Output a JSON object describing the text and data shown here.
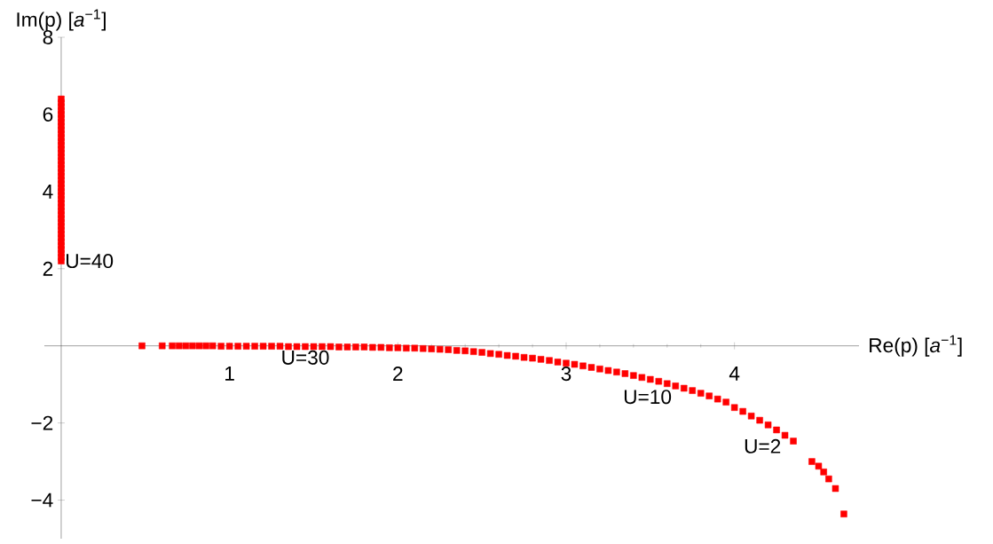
{
  "chart_data": {
    "type": "scatter",
    "xlabel": "Re(p) [*a*$^{−1}$]",
    "ylabel": "Im(p) [*a*$^{−1}$]",
    "xlim": [
      -0.1,
      4.74
    ],
    "ylim": [
      -5,
      8
    ],
    "xticks": [
      1,
      2,
      3,
      4
    ],
    "yticks": [
      {
        "value": -4,
        "label": "−4"
      },
      {
        "value": -2,
        "label": "−2"
      },
      2,
      4,
      6,
      8
    ],
    "grid": false,
    "marker": "square",
    "series": [
      {
        "color": "#ff0000",
        "x": [
          0,
          0,
          0,
          0,
          0,
          0,
          0,
          0,
          0,
          0,
          0,
          0,
          0,
          0,
          0,
          0,
          0,
          0,
          0,
          0,
          0,
          0,
          0,
          0,
          0,
          0,
          0,
          0,
          0,
          0,
          0,
          0,
          0,
          0,
          0,
          0,
          0,
          0,
          0,
          0,
          0,
          0,
          0,
          0.48,
          0.6,
          0.66,
          0.7,
          0.74,
          0.78,
          0.82,
          0.86,
          0.9,
          0.95,
          1.0,
          1.05,
          1.1,
          1.15,
          1.2,
          1.25,
          1.3,
          1.35,
          1.4,
          1.45,
          1.5,
          1.55,
          1.6,
          1.65,
          1.7,
          1.75,
          1.8,
          1.85,
          1.9,
          1.95,
          2.0,
          2.05,
          2.1,
          2.15,
          2.2,
          2.25,
          2.3,
          2.35,
          2.4,
          2.45,
          2.5,
          2.55,
          2.6,
          2.65,
          2.7,
          2.75,
          2.8,
          2.85,
          2.9,
          2.95,
          3.0,
          3.05,
          3.1,
          3.15,
          3.2,
          3.25,
          3.3,
          3.35,
          3.4,
          3.45,
          3.5,
          3.55,
          3.6,
          3.65,
          3.7,
          3.75,
          3.8,
          3.85,
          3.9,
          3.95,
          4.0,
          4.05,
          4.1,
          4.15,
          4.2,
          4.25,
          4.3,
          4.35,
          4.46,
          4.5,
          4.53,
          4.56,
          4.6,
          4.65
        ],
        "values": [
          2.2,
          2.3,
          2.4,
          2.5,
          2.6,
          2.7,
          2.8,
          2.9,
          3.0,
          3.1,
          3.2,
          3.3,
          3.4,
          3.5,
          3.6,
          3.7,
          3.8,
          3.9,
          4.0,
          4.1,
          4.2,
          4.3,
          4.4,
          4.5,
          4.6,
          4.7,
          4.8,
          4.9,
          5.0,
          5.1,
          5.2,
          5.3,
          5.4,
          5.5,
          5.6,
          5.7,
          5.8,
          5.9,
          6.0,
          6.1,
          6.2,
          6.3,
          6.4,
          0,
          0,
          0,
          0,
          0,
          0,
          0,
          0,
          0,
          -0.01,
          -0.01,
          -0.01,
          -0.01,
          -0.01,
          -0.01,
          -0.01,
          -0.01,
          -0.02,
          -0.02,
          -0.02,
          -0.02,
          -0.02,
          -0.02,
          -0.03,
          -0.03,
          -0.03,
          -0.03,
          -0.04,
          -0.04,
          -0.05,
          -0.05,
          -0.06,
          -0.06,
          -0.07,
          -0.08,
          -0.09,
          -0.1,
          -0.12,
          -0.13,
          -0.15,
          -0.17,
          -0.2,
          -0.22,
          -0.25,
          -0.27,
          -0.3,
          -0.32,
          -0.35,
          -0.38,
          -0.42,
          -0.45,
          -0.48,
          -0.52,
          -0.56,
          -0.6,
          -0.64,
          -0.68,
          -0.72,
          -0.77,
          -0.82,
          -0.87,
          -0.92,
          -0.98,
          -1.04,
          -1.1,
          -1.16,
          -1.23,
          -1.3,
          -1.38,
          -1.46,
          -1.6,
          -1.7,
          -1.82,
          -1.93,
          -2.05,
          -2.18,
          -2.32,
          -2.47,
          -3.0,
          -3.12,
          -3.27,
          -3.45,
          -3.7,
          -4.36
        ]
      }
    ],
    "annotations": [
      {
        "text": "U=40",
        "x": 0,
        "y": 2.2
      },
      {
        "text": "U=30",
        "x": 1.45,
        "y": -0.02
      },
      {
        "text": "U=10",
        "x": 3.65,
        "y": -1.04
      },
      {
        "text": "U=2",
        "x": 4.3,
        "y": -2.32
      }
    ]
  }
}
